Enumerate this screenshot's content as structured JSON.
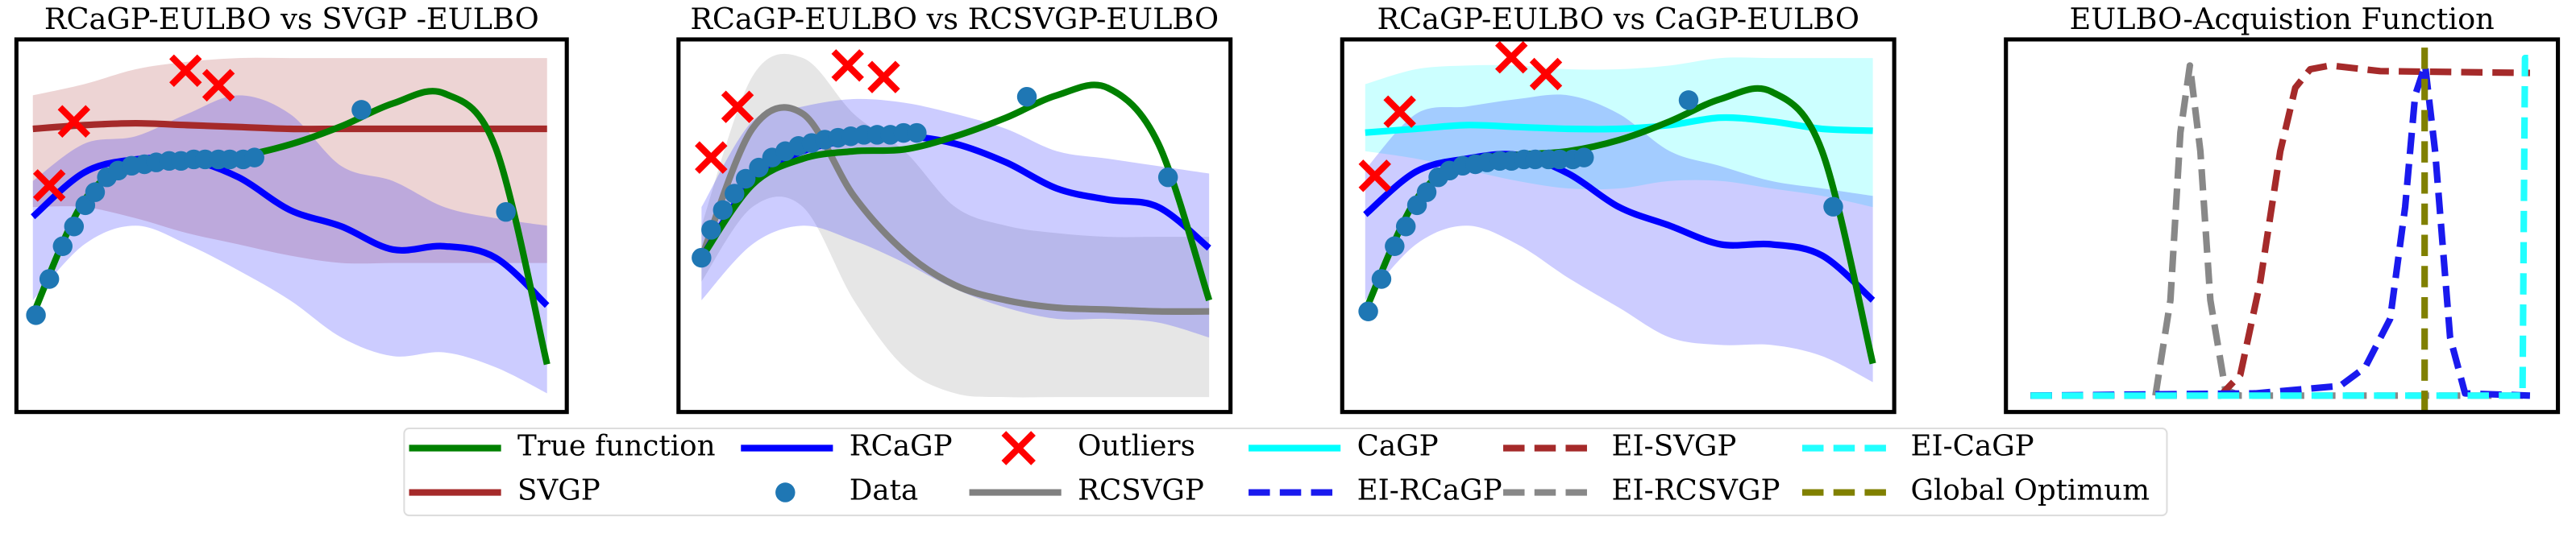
{
  "chart_data": [
    {
      "type": "line",
      "title": "RCaGP-EULBO vs SVGP -EULBO",
      "xlim": [
        0,
        1
      ],
      "ylim": [
        0,
        1
      ],
      "series": [
        {
          "name": "SVGP",
          "color": "#a52a2a",
          "x": [
            0,
            0.1,
            0.2,
            0.3,
            0.4,
            0.5,
            0.6,
            0.7,
            0.8,
            0.9,
            1
          ],
          "values": [
            0.76,
            0.77,
            0.775,
            0.77,
            0.765,
            0.76,
            0.76,
            0.76,
            0.76,
            0.76,
            0.76
          ],
          "lower": [
            0.55,
            0.55,
            0.52,
            0.48,
            0.45,
            0.42,
            0.4,
            0.4,
            0.4,
            0.4,
            0.4
          ],
          "upper": [
            0.85,
            0.88,
            0.92,
            0.94,
            0.95,
            0.95,
            0.95,
            0.95,
            0.95,
            0.95,
            0.95
          ]
        },
        {
          "name": "RCaGP",
          "color": "#0000ff",
          "x": [
            0,
            0.1,
            0.2,
            0.3,
            0.4,
            0.5,
            0.6,
            0.7,
            0.8,
            0.9,
            1
          ],
          "values": [
            0.524,
            0.643,
            0.678,
            0.678,
            0.63,
            0.542,
            0.498,
            0.436,
            0.445,
            0.414,
            0.286
          ],
          "lower": [
            0.3,
            0.45,
            0.5,
            0.45,
            0.38,
            0.3,
            0.2,
            0.15,
            0.16,
            0.12,
            0.05
          ],
          "upper": [
            0.62,
            0.72,
            0.74,
            0.8,
            0.85,
            0.8,
            0.66,
            0.62,
            0.55,
            0.52,
            0.5
          ]
        },
        {
          "name": "True function",
          "color": "#008000",
          "x": [
            0,
            0.1,
            0.2,
            0.3,
            0.4,
            0.5,
            0.6,
            0.7,
            0.8,
            0.9,
            1
          ],
          "values": [
            0.26,
            0.568,
            0.665,
            0.683,
            0.687,
            0.718,
            0.767,
            0.828,
            0.855,
            0.709,
            0.128
          ]
        },
        {
          "name": "Data",
          "type": "scatter",
          "color": "#1f77b4",
          "x": [
            0.006,
            0.032,
            0.058,
            0.08,
            0.102,
            0.121,
            0.144,
            0.166,
            0.192,
            0.217,
            0.24,
            0.265,
            0.288,
            0.313,
            0.335,
            0.361,
            0.383,
            0.409,
            0.431,
            0.639,
            0.92
          ],
          "values": [
            0.26,
            0.357,
            0.445,
            0.498,
            0.555,
            0.59,
            0.63,
            0.648,
            0.661,
            0.665,
            0.67,
            0.674,
            0.674,
            0.678,
            0.678,
            0.678,
            0.678,
            0.678,
            0.683,
            0.811,
            0.537
          ]
        },
        {
          "name": "Outliers",
          "type": "scatter",
          "marker": "x",
          "color": "#ff0000",
          "x": [
            0.032,
            0.08,
            0.297,
            0.361
          ],
          "values": [
            0.608,
            0.78,
            0.916,
            0.877
          ]
        }
      ]
    },
    {
      "type": "line",
      "title": "RCaGP-EULBO vs RCSVGP-EULBO",
      "xlim": [
        0,
        1
      ],
      "ylim": [
        0,
        1
      ],
      "series": [
        {
          "name": "RCSVGP",
          "color": "#808080",
          "x": [
            0,
            0.1,
            0.2,
            0.3,
            0.4,
            0.5,
            0.6,
            0.7,
            0.8,
            0.9,
            1
          ],
          "values": [
            0.414,
            0.76,
            0.8,
            0.58,
            0.43,
            0.34,
            0.3,
            0.28,
            0.275,
            0.27,
            0.27
          ],
          "lower": [
            0.35,
            0.55,
            0.55,
            0.3,
            0.12,
            0.05,
            0.04,
            0.04,
            0.04,
            0.04,
            0.04
          ],
          "upper": [
            0.5,
            0.9,
            0.95,
            0.8,
            0.7,
            0.55,
            0.5,
            0.48,
            0.47,
            0.47,
            0.47
          ]
        },
        {
          "name": "RCaGP",
          "color": "#0000ff",
          "x": [
            0,
            0.1,
            0.2,
            0.3,
            0.4,
            0.5,
            0.6,
            0.7,
            0.8,
            0.9,
            1
          ],
          "values": [
            0.414,
            0.62,
            0.7,
            0.73,
            0.74,
            0.72,
            0.67,
            0.6,
            0.57,
            0.55,
            0.44
          ],
          "lower": [
            0.3,
            0.45,
            0.5,
            0.46,
            0.4,
            0.33,
            0.28,
            0.25,
            0.25,
            0.24,
            0.2
          ],
          "upper": [
            0.55,
            0.78,
            0.82,
            0.84,
            0.83,
            0.8,
            0.76,
            0.7,
            0.68,
            0.66,
            0.64
          ]
        },
        {
          "name": "True function",
          "color": "#008000",
          "x": [
            0,
            0.1,
            0.2,
            0.3,
            0.4,
            0.5,
            0.6,
            0.7,
            0.8,
            0.9,
            1
          ],
          "values": [
            0.414,
            0.61,
            0.68,
            0.7,
            0.705,
            0.74,
            0.79,
            0.85,
            0.87,
            0.72,
            0.3
          ]
        },
        {
          "name": "Data",
          "type": "scatter",
          "color": "#1f77b4",
          "x": [
            0,
            0.019,
            0.042,
            0.065,
            0.087,
            0.113,
            0.139,
            0.165,
            0.191,
            0.217,
            0.243,
            0.269,
            0.294,
            0.32,
            0.346,
            0.372,
            0.398,
            0.424,
            0.641,
            0.919
          ],
          "values": [
            0.414,
            0.489,
            0.542,
            0.586,
            0.626,
            0.656,
            0.683,
            0.7,
            0.714,
            0.722,
            0.731,
            0.736,
            0.74,
            0.744,
            0.744,
            0.744,
            0.749,
            0.749,
            0.846,
            0.63
          ]
        },
        {
          "name": "Outliers",
          "type": "scatter",
          "marker": "x",
          "color": "#ff0000",
          "x": [
            0.019,
            0.071,
            0.288,
            0.359
          ],
          "values": [
            0.683,
            0.819,
            0.93,
            0.899
          ]
        }
      ]
    },
    {
      "type": "line",
      "title": "RCaGP-EULBO vs CaGP-EULBO",
      "xlim": [
        0,
        1
      ],
      "ylim": [
        0,
        1
      ],
      "series": [
        {
          "name": "CaGP",
          "color": "#00ffff",
          "x": [
            0,
            0.1,
            0.2,
            0.3,
            0.4,
            0.5,
            0.6,
            0.7,
            0.8,
            0.9,
            1
          ],
          "values": [
            0.75,
            0.76,
            0.77,
            0.765,
            0.76,
            0.76,
            0.77,
            0.79,
            0.78,
            0.76,
            0.755
          ],
          "lower": [
            0.7,
            0.68,
            0.65,
            0.62,
            0.6,
            0.6,
            0.62,
            0.62,
            0.6,
            0.58,
            0.55
          ],
          "upper": [
            0.88,
            0.92,
            0.93,
            0.93,
            0.92,
            0.92,
            0.93,
            0.95,
            0.95,
            0.95,
            0.95
          ]
        },
        {
          "name": "RCaGP",
          "color": "#0000ff",
          "x": [
            0,
            0.1,
            0.2,
            0.3,
            0.4,
            0.5,
            0.6,
            0.7,
            0.8,
            0.9,
            1
          ],
          "values": [
            0.53,
            0.645,
            0.68,
            0.69,
            0.64,
            0.55,
            0.5,
            0.45,
            0.45,
            0.42,
            0.3
          ],
          "lower": [
            0.3,
            0.45,
            0.5,
            0.45,
            0.36,
            0.28,
            0.2,
            0.18,
            0.18,
            0.15,
            0.08
          ],
          "upper": [
            0.65,
            0.8,
            0.82,
            0.84,
            0.85,
            0.8,
            0.7,
            0.66,
            0.62,
            0.6,
            0.58
          ]
        },
        {
          "name": "True function",
          "color": "#008000",
          "x": [
            0,
            0.1,
            0.2,
            0.3,
            0.4,
            0.5,
            0.6,
            0.7,
            0.8,
            0.9,
            1
          ],
          "values": [
            0.27,
            0.57,
            0.67,
            0.69,
            0.7,
            0.73,
            0.78,
            0.84,
            0.86,
            0.7,
            0.13
          ]
        },
        {
          "name": "Data",
          "type": "scatter",
          "color": "#1f77b4",
          "x": [
            0.006,
            0.032,
            0.058,
            0.08,
            0.102,
            0.121,
            0.144,
            0.166,
            0.192,
            0.217,
            0.24,
            0.265,
            0.288,
            0.313,
            0.335,
            0.361,
            0.383,
            0.409,
            0.431,
            0.637,
            0.922
          ],
          "values": [
            0.27,
            0.357,
            0.445,
            0.498,
            0.555,
            0.59,
            0.63,
            0.648,
            0.661,
            0.665,
            0.67,
            0.674,
            0.674,
            0.678,
            0.678,
            0.678,
            0.678,
            0.678,
            0.683,
            0.837,
            0.551
          ]
        },
        {
          "name": "Outliers",
          "type": "scatter",
          "marker": "x",
          "color": "#ff0000",
          "x": [
            0.019,
            0.068,
            0.288,
            0.356
          ],
          "values": [
            0.634,
            0.806,
            0.952,
            0.907
          ]
        }
      ]
    },
    {
      "type": "line",
      "title": "EULBO-Acquistion Function",
      "xlim": [
        0,
        1
      ],
      "ylim": [
        0,
        1
      ],
      "series": [
        {
          "name": "EI-RCSVGP",
          "dash": true,
          "color": "#888888",
          "x": [
            0,
            0.25,
            0.28,
            0.3,
            0.319,
            0.34,
            0.36,
            0.39,
            0.42,
            1
          ],
          "values": [
            0.044,
            0.044,
            0.3,
            0.75,
            0.93,
            0.7,
            0.3,
            0.06,
            0.044,
            0.044
          ]
        },
        {
          "name": "EI-SVGP",
          "dash": true,
          "color": "#a52a2a",
          "x": [
            0,
            0.38,
            0.42,
            0.46,
            0.5,
            0.53,
            0.56,
            0.6,
            0.7,
            1
          ],
          "values": [
            0.044,
            0.044,
            0.1,
            0.35,
            0.7,
            0.87,
            0.92,
            0.93,
            0.915,
            0.91
          ]
        },
        {
          "name": "EI-RCaGP",
          "dash": true,
          "color": "#1a1aee",
          "x": [
            0,
            0.45,
            0.62,
            0.67,
            0.72,
            0.75,
            0.77,
            0.79,
            0.81,
            0.84,
            0.87,
            1
          ],
          "values": [
            0.044,
            0.05,
            0.07,
            0.12,
            0.25,
            0.55,
            0.85,
            0.93,
            0.7,
            0.2,
            0.05,
            0.044
          ]
        },
        {
          "name": "EI-CaGP",
          "dash": true,
          "color": "#22ffff",
          "x": [
            0,
            0.985,
            0.99,
            1
          ],
          "values": [
            0.044,
            0.044,
            0.95,
            0.95
          ]
        },
        {
          "name": "Global Optimum",
          "dash": true,
          "color": "#808000",
          "x": [
            0.789,
            0.789
          ],
          "values": [
            0,
            1
          ]
        }
      ]
    }
  ]
}
